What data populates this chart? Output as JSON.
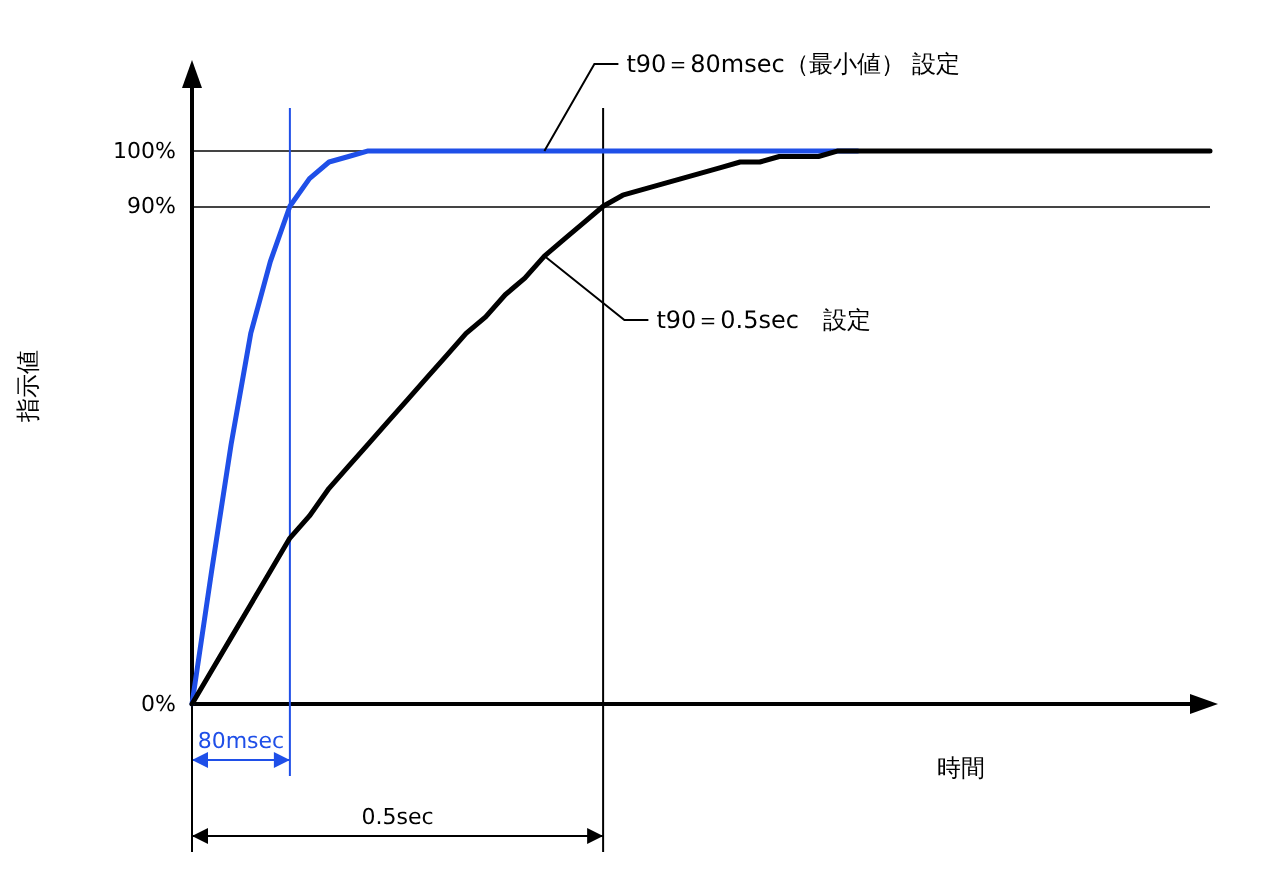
{
  "chart_data": {
    "type": "line",
    "xlabel": "時間",
    "ylabel": "指示値",
    "ylim": [
      0,
      115
    ],
    "categories": [
      null,
      null,
      null,
      null,
      null,
      null,
      null,
      null,
      null,
      null,
      null,
      null,
      null,
      null,
      null,
      null,
      null,
      null,
      null,
      null,
      null,
      null,
      null,
      null,
      null,
      null,
      null,
      null,
      null,
      null,
      null,
      null,
      null,
      null,
      null,
      null,
      null,
      null,
      null,
      null,
      null,
      null,
      null,
      null,
      null,
      null,
      null,
      null,
      null,
      null,
      null,
      null,
      null
    ],
    "yticks": [
      {
        "value": 0,
        "label": "0%"
      },
      {
        "value": 90,
        "label": "90%"
      },
      {
        "value": 100,
        "label": "100%"
      }
    ],
    "grid": "y",
    "marker": "none",
    "line_style": "solid",
    "series": [
      {
        "color": "#1f4fe8",
        "values": [
          0,
          24,
          47,
          67,
          80,
          90,
          95,
          98,
          99,
          100,
          100,
          100,
          100,
          100,
          100,
          100,
          100,
          100,
          100,
          100,
          100,
          100,
          100,
          100,
          100,
          100,
          100,
          100,
          100,
          100,
          100,
          100,
          100,
          100,
          100,
          null,
          null,
          null,
          null,
          null,
          null,
          null,
          null,
          null,
          null,
          null,
          null,
          null,
          null,
          null,
          null,
          null,
          null
        ]
      },
      {
        "color": "#000000",
        "values": [
          0,
          6,
          12,
          18,
          24,
          30,
          34,
          39,
          43,
          47,
          51,
          55,
          59,
          63,
          67,
          70,
          74,
          77,
          81,
          84,
          87,
          90,
          92,
          93,
          94,
          95,
          96,
          97,
          98,
          98,
          99,
          99,
          99,
          100,
          100,
          100,
          100,
          100,
          100,
          100,
          100,
          100,
          100,
          100,
          100,
          100,
          100,
          100,
          100,
          100,
          100,
          100,
          100
        ]
      }
    ],
    "annotations": [
      "t90＝80msec（最小値） 設定",
      "t90＝0.5sec　設定",
      "80msec",
      "0.5sec"
    ]
  }
}
